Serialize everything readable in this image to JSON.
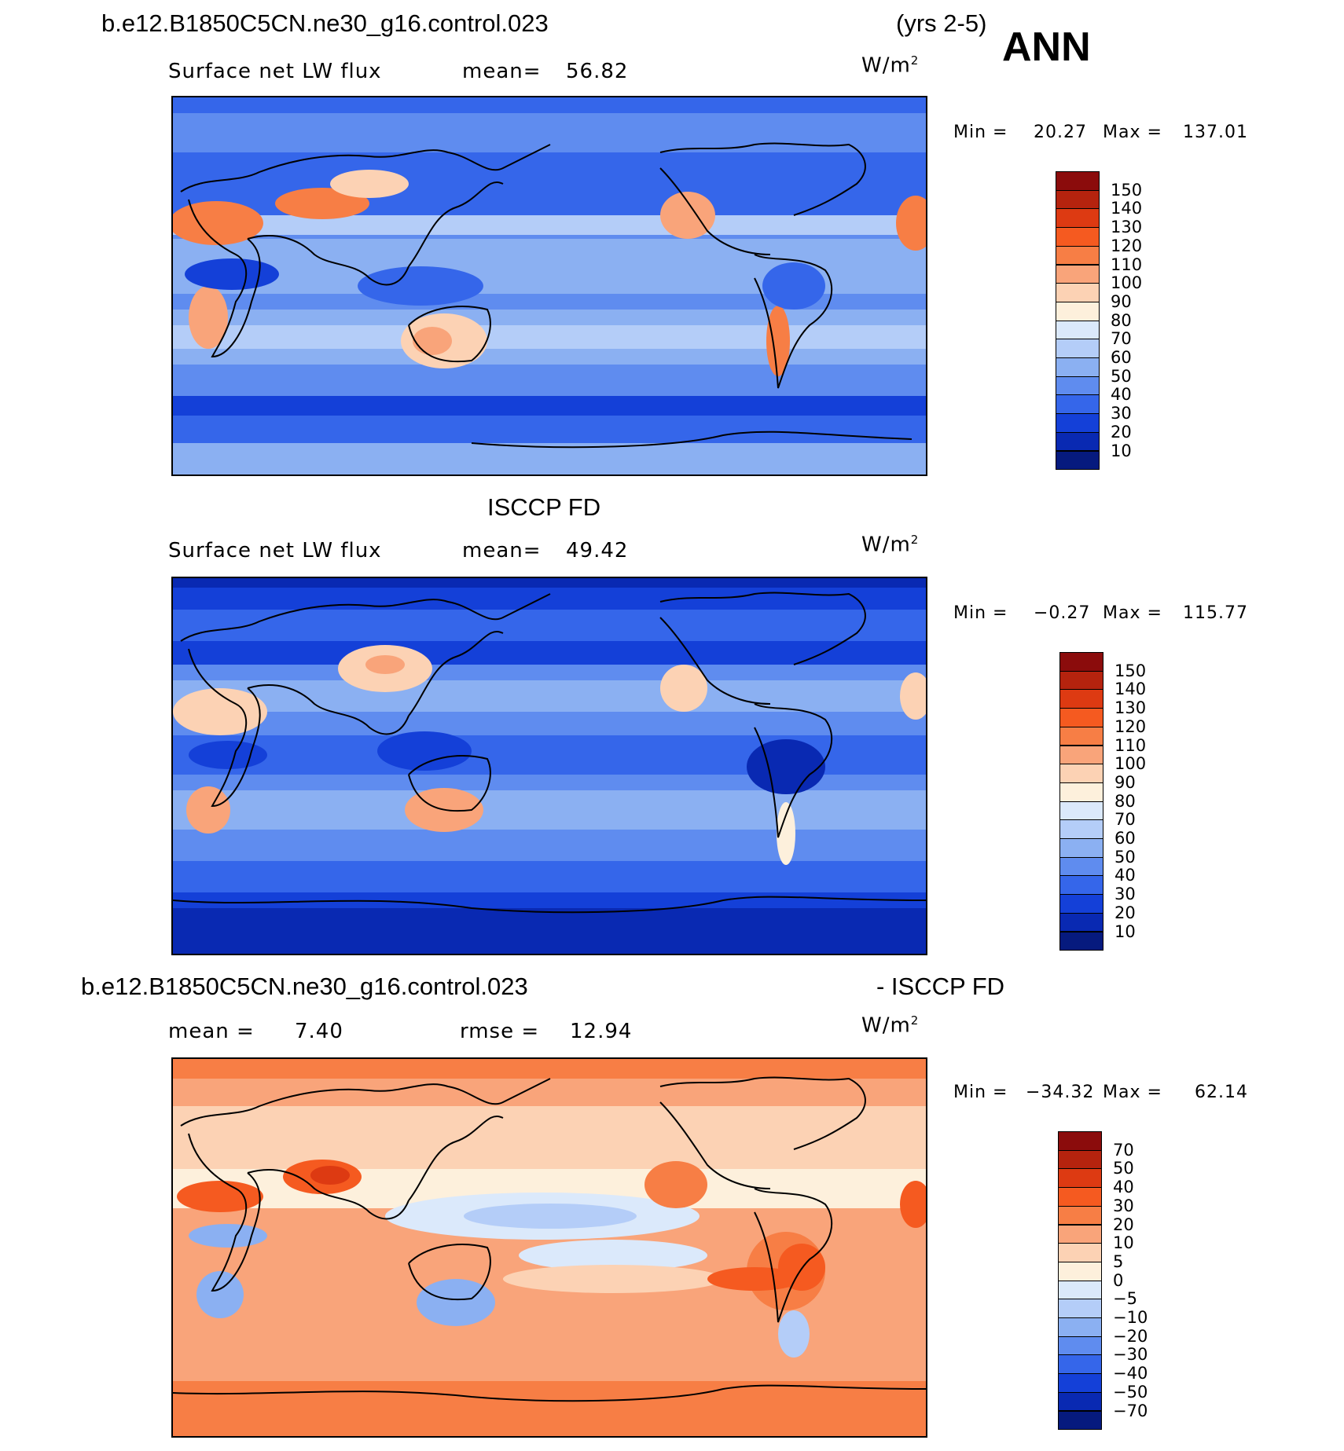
{
  "header": {
    "case_title": "b.e12.B1850C5CN.ne30_g16.control.023",
    "years": "(yrs 2-5)",
    "season": "ANN"
  },
  "panel1": {
    "variable": "Surface net LW flux",
    "mean_label": "mean=",
    "mean_value": "56.82",
    "units_base": "W/m",
    "units_exp": "2",
    "min_label": "Min =",
    "min_value": "20.27",
    "max_label": "Max =",
    "max_value": "137.01"
  },
  "panel2": {
    "title": "ISCCP FD",
    "variable": "Surface net LW flux",
    "mean_label": "mean=",
    "mean_value": "49.42",
    "units_base": "W/m",
    "units_exp": "2",
    "min_label": "Min =",
    "min_value": "−0.27",
    "max_label": "Max =",
    "max_value": "115.77"
  },
  "panel3": {
    "title_left": "b.e12.B1850C5CN.ne30_g16.control.023",
    "title_right": "- ISCCP FD",
    "mean_label": "mean =",
    "mean_value": "7.40",
    "rmse_label": "rmse =",
    "rmse_value": "12.94",
    "units_base": "W/m",
    "units_exp": "2",
    "min_label": "Min =",
    "min_value": "−34.32",
    "max_label": "Max =",
    "max_value": "62.14"
  },
  "colorbars": {
    "flux_labels": [
      "150",
      "140",
      "130",
      "120",
      "110",
      "100",
      "90",
      "80",
      "70",
      "60",
      "50",
      "40",
      "30",
      "20",
      "10"
    ],
    "diff_labels": [
      "70",
      "50",
      "40",
      "30",
      "20",
      "10",
      "5",
      "0",
      "−5",
      "−10",
      "−20",
      "−30",
      "−40",
      "−50",
      "−70"
    ],
    "colors": [
      "#8b0c0c",
      "#b5230e",
      "#dd3a12",
      "#f55a20",
      "#f77e45",
      "#f9a47a",
      "#fcd2b4",
      "#fdf0dc",
      "#dbe9fb",
      "#b4cdf8",
      "#8bb0f2",
      "#5f8cef",
      "#3566ea",
      "#1440d8",
      "#0929b2",
      "#061a7e"
    ]
  },
  "chart_data": [
    {
      "type": "heatmap",
      "title": "Surface net LW flux",
      "units": "W/m2",
      "stats": {
        "mean": 56.82,
        "min": 20.27,
        "max": 137.01
      },
      "levels": [
        10,
        20,
        30,
        40,
        50,
        60,
        70,
        80,
        90,
        100,
        110,
        120,
        130,
        140,
        150
      ]
    },
    {
      "type": "heatmap",
      "title": "ISCCP FD",
      "units": "W/m2",
      "stats": {
        "mean": 49.42,
        "min": -0.27,
        "max": 115.77
      },
      "levels": [
        10,
        20,
        30,
        40,
        50,
        60,
        70,
        80,
        90,
        100,
        110,
        120,
        130,
        140,
        150
      ]
    },
    {
      "type": "heatmap",
      "title": "b.e12.B1850C5CN.ne30_g16.control.023 - ISCCP FD",
      "units": "W/m2",
      "stats": {
        "mean": 7.4,
        "rmse": 12.94,
        "min": -34.32,
        "max": 62.14
      },
      "levels": [
        -70,
        -50,
        -40,
        -30,
        -20,
        -10,
        -5,
        0,
        5,
        10,
        20,
        30,
        40,
        50,
        70
      ]
    }
  ]
}
